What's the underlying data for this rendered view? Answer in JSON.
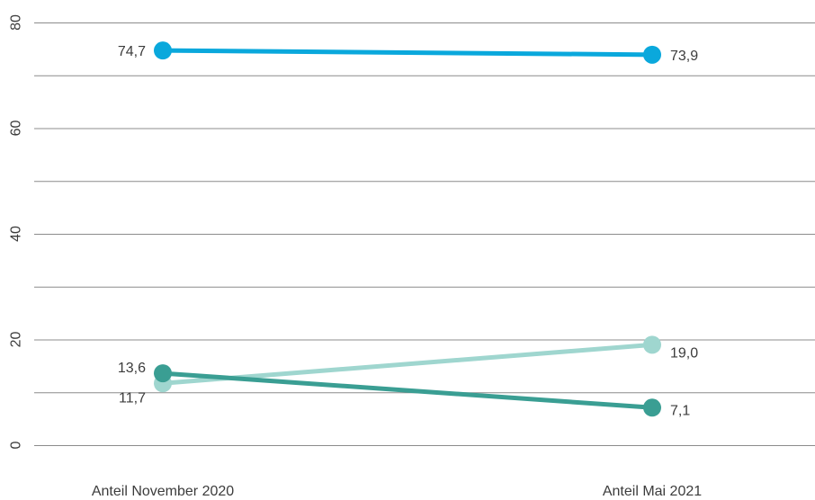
{
  "chart_data": {
    "type": "line",
    "categories": [
      "Anteil November 2020",
      "Anteil Mai 2021"
    ],
    "ylim": [
      0,
      80
    ],
    "yticks": [
      0,
      20,
      40,
      60,
      80
    ],
    "grid": true,
    "series": [
      {
        "values": [
          74.7,
          73.9
        ],
        "labels": [
          "74,7",
          "73,9"
        ],
        "color": "#0aa8dc"
      },
      {
        "values": [
          11.7,
          19.0
        ],
        "labels": [
          "11,7",
          "19,0"
        ],
        "color": "#9fd6cf"
      },
      {
        "values": [
          13.6,
          7.1
        ],
        "labels": [
          "13,6",
          "7,1"
        ],
        "color": "#3a9e93"
      }
    ]
  }
}
